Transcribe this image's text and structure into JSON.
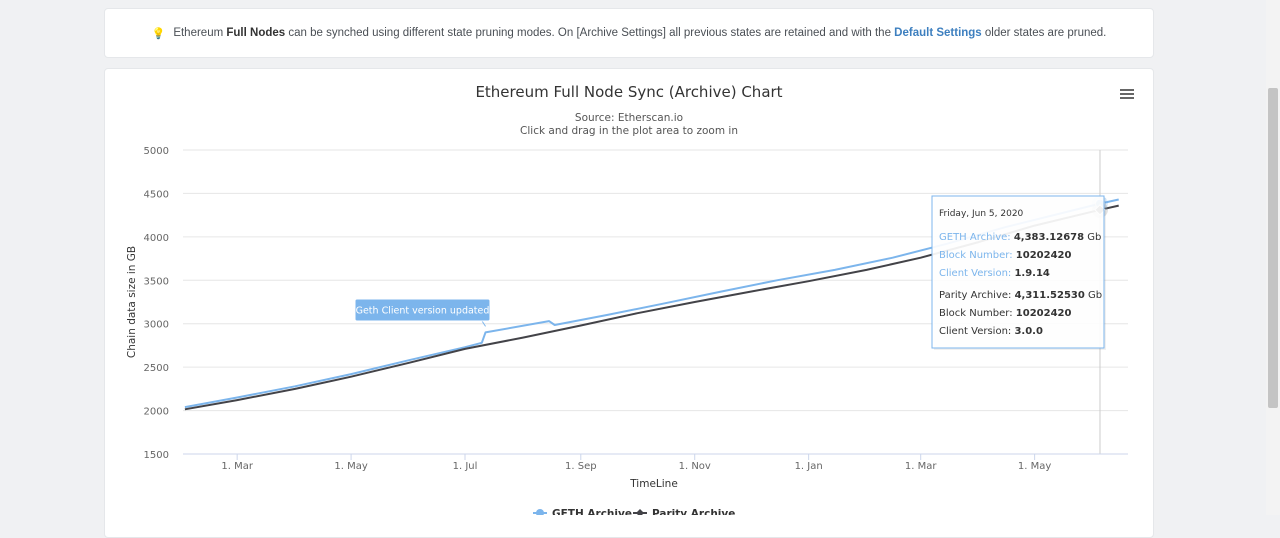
{
  "notice": {
    "icon": "lightbulb-icon",
    "part1": "Ethereum ",
    "bold1": "Full Nodes",
    "part2": " can be synched using different state pruning modes. On [Archive Settings] all previous states are retained and with the ",
    "link": "Default Settings",
    "part3": " older states are pruned."
  },
  "chart_data": {
    "type": "line",
    "title": "Ethereum Full Node Sync (Archive) Chart",
    "subtitle": "Source: Etherscan.io",
    "subtitle2": "Click and drag in the plot area to zoom in",
    "xlabel": "TimeLine",
    "ylabel": "Chain data size in GB",
    "ylim": [
      1500,
      5000
    ],
    "yticks": [
      1500,
      2000,
      2500,
      3000,
      3500,
      4000,
      4500,
      5000
    ],
    "xlim": [
      "2019-01-31",
      "2020-06-20"
    ],
    "xticks": [
      {
        "date": "2019-03-01",
        "label": "1. Mar"
      },
      {
        "date": "2019-05-01",
        "label": "1. May"
      },
      {
        "date": "2019-07-01",
        "label": "1. Jul"
      },
      {
        "date": "2019-09-01",
        "label": "1. Sep"
      },
      {
        "date": "2019-11-01",
        "label": "1. Nov"
      },
      {
        "date": "2020-01-01",
        "label": "1. Jan"
      },
      {
        "date": "2020-03-01",
        "label": "1. Mar"
      },
      {
        "date": "2020-05-01",
        "label": "1. May"
      }
    ],
    "grid": true,
    "legend_position": "bottom-center",
    "series": [
      {
        "name": "GETH Archive",
        "color": "#7cb5ec",
        "points": [
          [
            "2019-02-01",
            2040
          ],
          [
            "2019-03-01",
            2150
          ],
          [
            "2019-04-01",
            2280
          ],
          [
            "2019-05-01",
            2420
          ],
          [
            "2019-06-01",
            2580
          ],
          [
            "2019-07-01",
            2730
          ],
          [
            "2019-07-10",
            2780
          ],
          [
            "2019-07-12",
            2900
          ],
          [
            "2019-08-15",
            3030
          ],
          [
            "2019-08-18",
            2985
          ],
          [
            "2019-09-15",
            3100
          ],
          [
            "2019-10-15",
            3230
          ],
          [
            "2019-11-15",
            3370
          ],
          [
            "2019-12-15",
            3500
          ],
          [
            "2020-01-15",
            3620
          ],
          [
            "2020-02-15",
            3760
          ],
          [
            "2020-03-15",
            3920
          ],
          [
            "2020-04-15",
            4110
          ],
          [
            "2020-05-15",
            4270
          ],
          [
            "2020-06-05",
            4383.12678
          ],
          [
            "2020-06-15",
            4430
          ]
        ]
      },
      {
        "name": "Parity Archive",
        "color": "#434348",
        "points": [
          [
            "2019-02-01",
            2015
          ],
          [
            "2019-03-01",
            2120
          ],
          [
            "2019-04-01",
            2250
          ],
          [
            "2019-05-01",
            2390
          ],
          [
            "2019-06-01",
            2550
          ],
          [
            "2019-07-01",
            2710
          ],
          [
            "2019-08-01",
            2840
          ],
          [
            "2019-09-01",
            2980
          ],
          [
            "2019-10-01",
            3120
          ],
          [
            "2019-11-01",
            3250
          ],
          [
            "2019-12-01",
            3370
          ],
          [
            "2020-01-01",
            3490
          ],
          [
            "2020-02-01",
            3620
          ],
          [
            "2020-03-01",
            3760
          ],
          [
            "2020-04-01",
            3940
          ],
          [
            "2020-05-01",
            4130
          ],
          [
            "2020-06-05",
            4311.5253
          ],
          [
            "2020-06-15",
            4360
          ]
        ]
      }
    ],
    "annotation": {
      "text": "Geth Client version updated",
      "date": "2019-07-12",
      "value": 2900
    },
    "crosshair_date": "2020-06-05",
    "tooltip": {
      "date": "Friday, Jun 5, 2020",
      "geth": {
        "label": "GETH Archive",
        "value": "4,383.12678",
        "unit": "Gb",
        "block_label": "Block Number",
        "block": "10202420",
        "client_label": "Client Version",
        "client": "1.9.14"
      },
      "parity": {
        "label": "Parity Archive",
        "value": "4,311.52530",
        "unit": "Gb",
        "block_label": "Block Number",
        "block": "10202420",
        "client_label": "Client Version",
        "client": "3.0.0"
      }
    }
  }
}
